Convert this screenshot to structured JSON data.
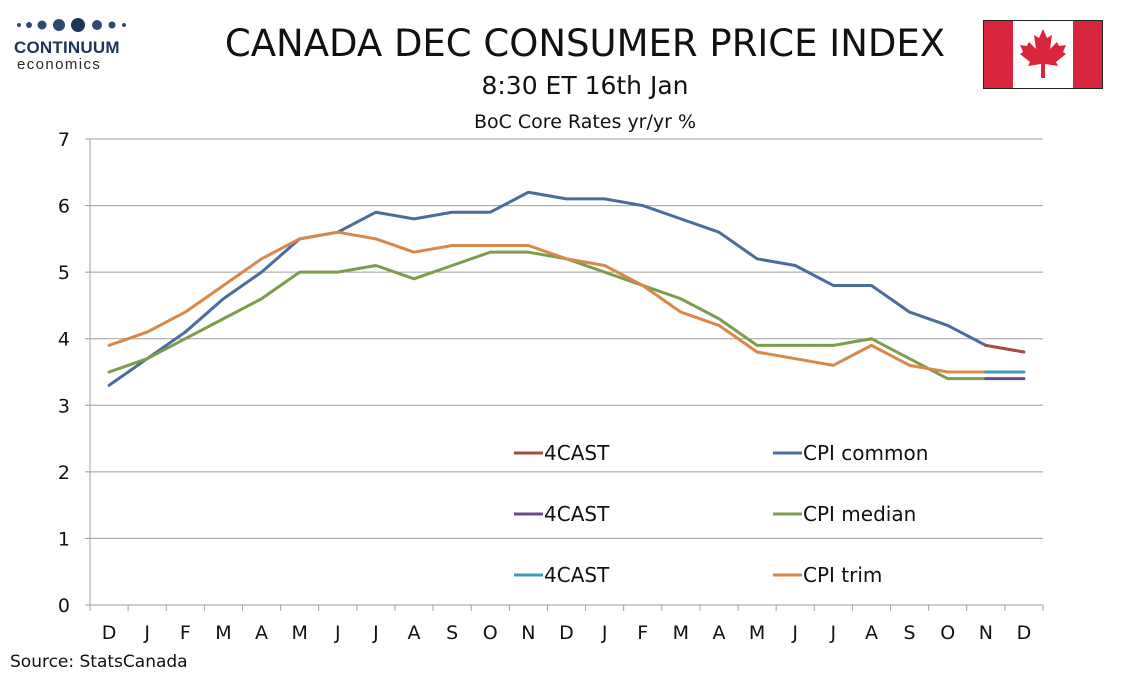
{
  "logo": {
    "word": "CONTINUUM",
    "sub": "economics"
  },
  "header": {
    "title": "CANADA DEC CONSUMER PRICE INDEX",
    "subtitle": "8:30 ET 16th Jan"
  },
  "footer": {
    "source": "Source: StatsCanada"
  },
  "colors": {
    "cpi_common": "#4a6d9c",
    "cpi_median": "#7d9d4d",
    "cpi_trim": "#d8884a",
    "fc_common": "#a44a43",
    "fc_median": "#6b4a8c",
    "fc_trim": "#3c9bb0",
    "flag_red": "#d9263d",
    "grid": "#a0a0a0",
    "axis": "#a0a0a0"
  },
  "chart_data": {
    "type": "line",
    "title": "BoC Core Rates yr/yr %",
    "xlabel": "",
    "ylabel": "",
    "ylim": [
      0,
      7
    ],
    "yticks": [
      0,
      1,
      2,
      3,
      4,
      5,
      6,
      7
    ],
    "grid": "horizontal",
    "legend_position": "lower-center",
    "categories": [
      "D",
      "J",
      "F",
      "M",
      "A",
      "M",
      "J",
      "J",
      "A",
      "S",
      "O",
      "N",
      "D",
      "J",
      "F",
      "M",
      "A",
      "M",
      "J",
      "J",
      "A",
      "S",
      "O",
      "N",
      "D"
    ],
    "series": [
      {
        "name": "CPI common",
        "color_key": "cpi_common",
        "values": [
          3.3,
          3.7,
          4.1,
          4.6,
          5.0,
          5.5,
          5.6,
          5.9,
          5.8,
          5.9,
          5.9,
          6.2,
          6.1,
          6.1,
          6.0,
          5.8,
          5.6,
          5.2,
          5.1,
          4.8,
          4.8,
          4.4,
          4.2,
          3.9,
          null
        ]
      },
      {
        "name": "CPI median",
        "color_key": "cpi_median",
        "values": [
          3.5,
          3.7,
          4.0,
          4.3,
          4.6,
          5.0,
          5.0,
          5.1,
          4.9,
          5.1,
          5.3,
          5.3,
          5.2,
          5.0,
          4.8,
          4.6,
          4.3,
          3.9,
          3.9,
          3.9,
          4.0,
          3.7,
          3.4,
          3.4,
          null
        ]
      },
      {
        "name": "CPI trim",
        "color_key": "cpi_trim",
        "values": [
          3.9,
          4.1,
          4.4,
          4.8,
          5.2,
          5.5,
          5.6,
          5.5,
          5.3,
          5.4,
          5.4,
          5.4,
          5.2,
          5.1,
          4.8,
          4.4,
          4.2,
          3.8,
          3.7,
          3.6,
          3.9,
          3.6,
          3.5,
          3.5,
          null
        ]
      },
      {
        "name": "4CAST",
        "color_key": "fc_common",
        "values": [
          null,
          null,
          null,
          null,
          null,
          null,
          null,
          null,
          null,
          null,
          null,
          null,
          null,
          null,
          null,
          null,
          null,
          null,
          null,
          null,
          null,
          null,
          null,
          3.9,
          3.8
        ]
      },
      {
        "name": "4CAST",
        "color_key": "fc_median",
        "values": [
          null,
          null,
          null,
          null,
          null,
          null,
          null,
          null,
          null,
          null,
          null,
          null,
          null,
          null,
          null,
          null,
          null,
          null,
          null,
          null,
          null,
          null,
          null,
          3.4,
          3.4
        ]
      },
      {
        "name": "4CAST",
        "color_key": "fc_trim",
        "values": [
          null,
          null,
          null,
          null,
          null,
          null,
          null,
          null,
          null,
          null,
          null,
          null,
          null,
          null,
          null,
          null,
          null,
          null,
          null,
          null,
          null,
          null,
          null,
          3.5,
          3.5
        ]
      }
    ],
    "legend": [
      {
        "label": "4CAST",
        "color_key": "fc_common"
      },
      {
        "label": "CPI common",
        "color_key": "cpi_common"
      },
      {
        "label": "4CAST",
        "color_key": "fc_median"
      },
      {
        "label": "CPI median",
        "color_key": "cpi_median"
      },
      {
        "label": "4CAST",
        "color_key": "fc_trim"
      },
      {
        "label": "CPI trim",
        "color_key": "cpi_trim"
      }
    ]
  }
}
